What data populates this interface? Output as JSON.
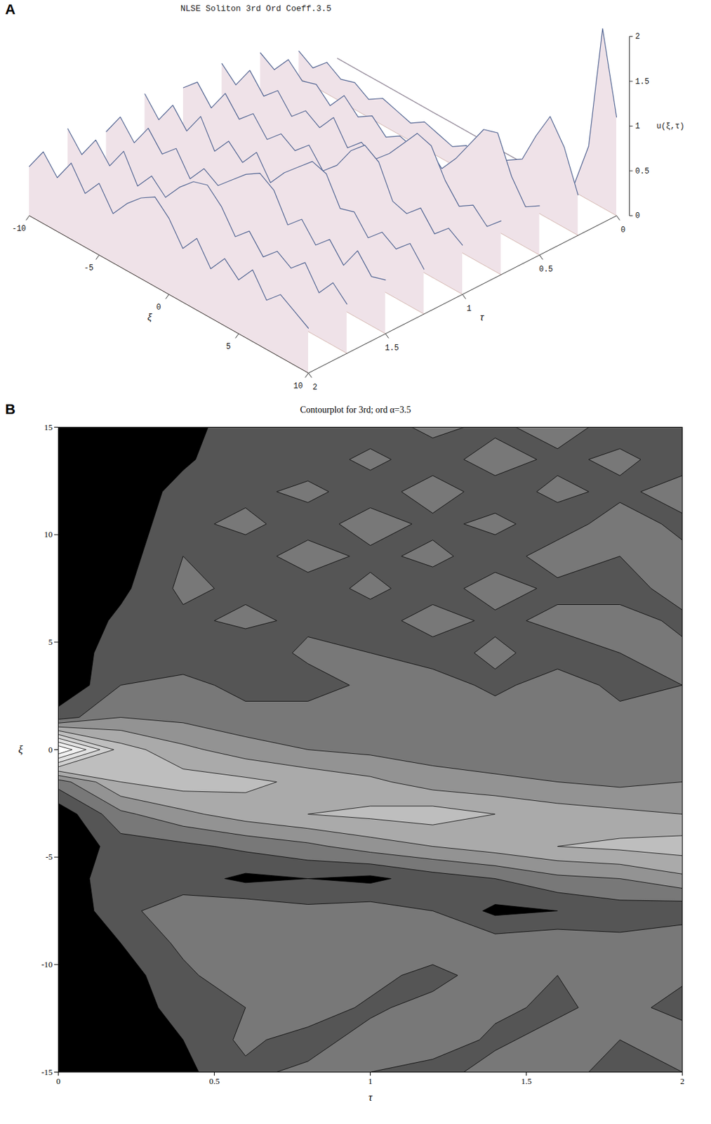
{
  "chart_data": [
    {
      "type": "surface",
      "panel": "A",
      "title": "NLSE Soliton 3rd Ord Coeff.3.5",
      "xlabel": "ξ",
      "ylabel": "τ",
      "zlabel": "u(ξ,τ)",
      "x": [
        -10,
        -9,
        -8,
        -7,
        -6,
        -5,
        -4,
        -3,
        -2,
        -1,
        0,
        1,
        2,
        3,
        4,
        5,
        6,
        7,
        8,
        9,
        10
      ],
      "y": [
        0,
        0.25,
        0.5,
        0.75,
        1,
        1.25,
        1.5,
        1.75,
        2
      ],
      "values": [
        [
          0,
          0,
          0,
          0,
          0,
          0,
          0,
          0,
          0,
          0,
          0,
          0,
          0,
          0,
          0,
          0,
          0,
          0.1,
          0.6,
          2.0,
          1.1
        ],
        [
          0.3,
          0.2,
          0.35,
          0.25,
          0.3,
          0.2,
          0.3,
          0.25,
          0.2,
          0.3,
          0.25,
          0.2,
          0.3,
          0.2,
          0.3,
          0.4,
          0.5,
          0.85,
          1.15,
          0.9,
          0.45
        ],
        [
          0.5,
          0.4,
          0.6,
          0.45,
          0.5,
          0.35,
          0.55,
          0.4,
          0.5,
          0.35,
          0.45,
          0.4,
          0.5,
          0.35,
          0.55,
          0.8,
          1.05,
          1.1,
          0.7,
          0.45,
          0.55
        ],
        [
          0.6,
          0.45,
          0.7,
          0.5,
          0.65,
          0.45,
          0.6,
          0.5,
          0.7,
          0.45,
          0.6,
          0.5,
          0.65,
          0.85,
          1.05,
          1.0,
          0.7,
          0.5,
          0.6,
          0.45,
          0.6
        ],
        [
          0.55,
          0.7,
          0.5,
          0.75,
          0.55,
          0.7,
          0.5,
          0.65,
          0.55,
          0.7,
          0.5,
          0.65,
          0.9,
          1.05,
          0.95,
          0.6,
          0.55,
          0.7,
          0.5,
          0.65,
          0.55
        ],
        [
          0.7,
          0.5,
          0.75,
          0.55,
          0.8,
          0.5,
          0.7,
          0.55,
          0.75,
          0.5,
          0.7,
          0.85,
          1.0,
          0.95,
          0.65,
          0.7,
          0.5,
          0.65,
          0.55,
          0.7,
          0.5
        ],
        [
          0.5,
          0.75,
          0.55,
          0.8,
          0.6,
          0.75,
          0.5,
          0.7,
          0.6,
          0.75,
          0.9,
          1.0,
          0.9,
          0.6,
          0.75,
          0.55,
          0.7,
          0.5,
          0.75,
          0.55,
          0.6
        ],
        [
          0.75,
          0.55,
          0.8,
          0.6,
          0.85,
          0.55,
          0.75,
          0.6,
          0.8,
          0.95,
          1.0,
          0.85,
          0.6,
          0.75,
          0.55,
          0.7,
          0.6,
          0.75,
          0.5,
          0.7,
          0.55
        ],
        [
          0.55,
          0.8,
          0.6,
          0.85,
          0.6,
          0.8,
          0.55,
          0.75,
          0.9,
          1.0,
          0.85,
          0.6,
          0.8,
          0.55,
          0.75,
          0.6,
          0.8,
          0.55,
          0.7,
          0.6,
          0.5
        ]
      ],
      "xlim": [
        -10,
        10
      ],
      "ylim": [
        0,
        2
      ],
      "zlim": [
        0,
        2
      ],
      "xticks": [
        -10,
        -5,
        0,
        5,
        10
      ],
      "yticks": [
        0,
        0.5,
        1,
        1.5,
        2
      ],
      "zticks": [
        0,
        0.5,
        1,
        1.5,
        2
      ]
    },
    {
      "type": "contour",
      "panel": "B",
      "title": "Contourplot for 3rd; ord α=3.5",
      "xlabel": "τ",
      "ylabel": "ξ",
      "x": [
        0,
        0.2,
        0.4,
        0.6,
        0.8,
        1,
        1.2,
        1.4,
        1.6,
        1.8,
        2
      ],
      "y": [
        15,
        13.5,
        12,
        10.5,
        9,
        7.5,
        6,
        4.5,
        3,
        1.5,
        0,
        -1.5,
        -3,
        -4.5,
        -6,
        -7.5,
        -9,
        -10.5,
        -12,
        -13.5,
        -15
      ],
      "values": [
        [
          0,
          0,
          0.1,
          0.35,
          0.4,
          0.3,
          0.45,
          0.35,
          0.5,
          0.3,
          0.4
        ],
        [
          0,
          0,
          0.15,
          0.4,
          0.3,
          0.45,
          0.3,
          0.5,
          0.35,
          0.45,
          0.3
        ],
        [
          0,
          0,
          0.3,
          0.35,
          0.45,
          0.3,
          0.5,
          0.3,
          0.45,
          0.35,
          0.5
        ],
        [
          0,
          0.05,
          0.35,
          0.45,
          0.3,
          0.5,
          0.35,
          0.45,
          0.3,
          0.5,
          0.35
        ],
        [
          0,
          0.1,
          0.4,
          0.3,
          0.5,
          0.35,
          0.45,
          0.3,
          0.5,
          0.4,
          0.45
        ],
        [
          0,
          0.15,
          0.45,
          0.35,
          0.3,
          0.45,
          0.3,
          0.5,
          0.35,
          0.3,
          0.5
        ],
        [
          0,
          0.25,
          0.35,
          0.45,
          0.35,
          0.3,
          0.5,
          0.35,
          0.45,
          0.5,
          0.35
        ],
        [
          0,
          0.35,
          0.3,
          0.25,
          0.45,
          0.4,
          0.3,
          0.45,
          0.3,
          0.4,
          0.45
        ],
        [
          0,
          0.4,
          0.45,
          0.35,
          0.3,
          0.45,
          0.5,
          0.35,
          0.5,
          0.35,
          0.4
        ],
        [
          0.3,
          0.6,
          0.55,
          0.45,
          0.5,
          0.4,
          0.45,
          0.5,
          0.4,
          0.45,
          0.5
        ],
        [
          2.0,
          1.1,
          0.85,
          0.7,
          0.6,
          0.55,
          0.5,
          0.45,
          0.55,
          0.5,
          0.45
        ],
        [
          0.5,
          1.0,
          1.1,
          1.05,
          0.95,
          0.85,
          0.7,
          0.65,
          0.6,
          0.55,
          0.6
        ],
        [
          0.05,
          0.55,
          0.75,
          0.9,
          1.0,
          1.05,
          1.1,
          1.0,
          0.9,
          0.85,
          0.8
        ],
        [
          0,
          0.3,
          0.35,
          0.45,
          0.55,
          0.7,
          0.8,
          0.9,
          1.0,
          1.05,
          1.1
        ],
        [
          0,
          0.4,
          0.3,
          0.15,
          0.2,
          0.15,
          0.3,
          0.4,
          0.55,
          0.6,
          0.75
        ],
        [
          0,
          0.35,
          0.5,
          0.55,
          0.45,
          0.5,
          0.4,
          0.15,
          0.2,
          0.3,
          0.25
        ],
        [
          0,
          0.2,
          0.45,
          0.4,
          0.6,
          0.55,
          0.6,
          0.5,
          0.55,
          0.45,
          0.6
        ],
        [
          0,
          0.1,
          0.35,
          0.55,
          0.4,
          0.5,
          0.3,
          0.55,
          0.4,
          0.6,
          0.45
        ],
        [
          0,
          0.05,
          0.3,
          0.4,
          0.55,
          0.35,
          0.5,
          0.45,
          0.35,
          0.5,
          0.3
        ],
        [
          0,
          0,
          0.2,
          0.45,
          0.3,
          0.5,
          0.55,
          0.35,
          0.5,
          0.4,
          0.55
        ],
        [
          0,
          0,
          0.15,
          0.35,
          0.45,
          0.4,
          0.3,
          0.5,
          0.45,
          0.35,
          0.4
        ]
      ],
      "levels": [
        0.2,
        0.4,
        0.6,
        0.8,
        1.0,
        1.2,
        1.4,
        1.6,
        1.8
      ],
      "xlim": [
        0,
        2
      ],
      "ylim": [
        -15,
        15
      ],
      "xticks": [
        0,
        0.5,
        1,
        1.5,
        2
      ],
      "yticks": [
        -15,
        -10,
        -5,
        0,
        5,
        10,
        15
      ]
    }
  ]
}
